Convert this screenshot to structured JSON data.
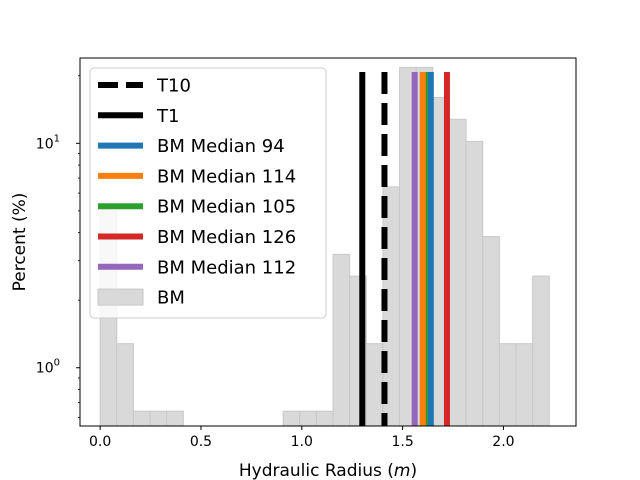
{
  "chart_data": {
    "type": "histogram",
    "xlabel": "Hydraulic Radius (",
    "xlabel_unit": "m",
    "xlabel_close": ")",
    "ylabel": "Percent (%)",
    "xlim": [
      -0.1,
      2.36
    ],
    "ylim": [
      0.55,
      24
    ],
    "yscale": "log",
    "grid": false,
    "legend_position": "upper-left",
    "x_ticks": [
      {
        "value": 0.0,
        "label": "0.0"
      },
      {
        "value": 0.5,
        "label": "0.5"
      },
      {
        "value": 1.0,
        "label": "1.0"
      },
      {
        "value": 1.5,
        "label": "1.5"
      },
      {
        "value": 2.0,
        "label": "2.0"
      }
    ],
    "y_ticks": [
      {
        "value": 1,
        "base": "10",
        "exp": "0"
      },
      {
        "value": 10,
        "base": "10",
        "exp": "1"
      }
    ],
    "histogram": {
      "name": "BM",
      "color": "#d9d9d9",
      "edge_color": "#c8c8c8",
      "bin_width": 0.0825,
      "bins": [
        {
          "x0": 0.0,
          "value": 5.1
        },
        {
          "x0": 0.0825,
          "value": 1.28
        },
        {
          "x0": 0.165,
          "value": 0.64
        },
        {
          "x0": 0.2475,
          "value": 0.64
        },
        {
          "x0": 0.33,
          "value": 0.64
        },
        {
          "x0": 0.9075,
          "value": 0.64
        },
        {
          "x0": 0.99,
          "value": 0.64
        },
        {
          "x0": 1.0725,
          "value": 0.64
        },
        {
          "x0": 1.155,
          "value": 3.2
        },
        {
          "x0": 1.2375,
          "value": 2.56
        },
        {
          "x0": 1.32,
          "value": 1.28
        },
        {
          "x0": 1.4025,
          "value": 6.4
        },
        {
          "x0": 1.485,
          "value": 21.8
        },
        {
          "x0": 1.5675,
          "value": 21.8
        },
        {
          "x0": 1.65,
          "value": 16.0
        },
        {
          "x0": 1.7325,
          "value": 12.8
        },
        {
          "x0": 1.815,
          "value": 10.2
        },
        {
          "x0": 1.8975,
          "value": 3.84
        },
        {
          "x0": 1.98,
          "value": 1.28
        },
        {
          "x0": 2.0625,
          "value": 1.28
        },
        {
          "x0": 2.145,
          "value": 2.56
        }
      ]
    },
    "vlines": [
      {
        "name": "T10",
        "x": 1.41,
        "color": "#000000",
        "style": "dashed"
      },
      {
        "name": "T1",
        "x": 1.3,
        "color": "#000000",
        "style": "solid"
      },
      {
        "name": "BM Median 94",
        "x": 1.64,
        "color": "#1f77b4",
        "style": "solid"
      },
      {
        "name": "BM Median 114",
        "x": 1.6,
        "color": "#ff7f0e",
        "style": "solid"
      },
      {
        "name": "BM Median 105",
        "x": 1.62,
        "color": "#2ca02c",
        "style": "solid"
      },
      {
        "name": "BM Median 126",
        "x": 1.72,
        "color": "#d62728",
        "style": "solid"
      },
      {
        "name": "BM Median 112",
        "x": 1.56,
        "color": "#9467bd",
        "style": "solid"
      }
    ]
  }
}
